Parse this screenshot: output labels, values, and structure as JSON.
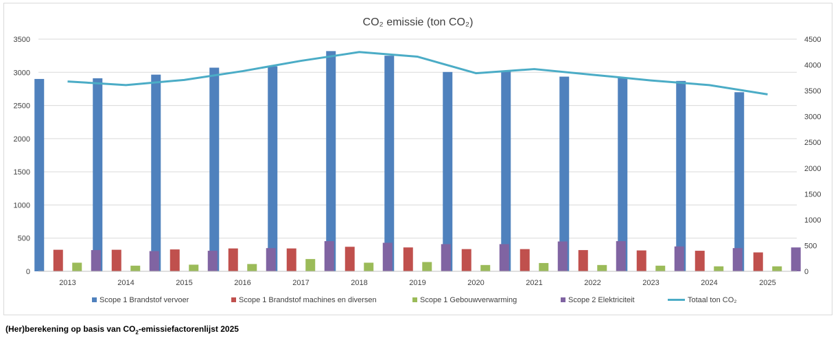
{
  "chart_data": {
    "type": "bar",
    "title": "CO₂ emissie (ton CO₂)",
    "categories": [
      "2013",
      "2014",
      "2015",
      "2016",
      "2017",
      "2018",
      "2019",
      "2020",
      "2021",
      "2022",
      "2023",
      "2024",
      "2025"
    ],
    "ylim_left": [
      0,
      3500
    ],
    "yticks_left": [
      0,
      500,
      1000,
      1500,
      2000,
      2500,
      3000,
      3500
    ],
    "ylim_right": [
      0,
      4500
    ],
    "yticks_right": [
      0,
      500,
      1000,
      1500,
      2000,
      2500,
      3000,
      3500,
      4000,
      4500
    ],
    "grid": "horizontal",
    "legend_position": "bottom",
    "series": [
      {
        "name": "Scope 1 Brandstof vervoer",
        "type": "bar",
        "axis": "left",
        "color": "#4f81bd",
        "values": [
          2900,
          2910,
          2965,
          3070,
          3090,
          3320,
          3250,
          3005,
          3010,
          2935,
          2920,
          2870,
          2700
        ]
      },
      {
        "name": "Scope 1 Brandstof machines en diversen",
        "type": "bar",
        "axis": "left",
        "color": "#c0504d",
        "values": [
          325,
          325,
          330,
          345,
          345,
          370,
          360,
          335,
          335,
          320,
          315,
          310,
          285
        ]
      },
      {
        "name": "Scope 1 Gebouwverwarming",
        "type": "bar",
        "axis": "left",
        "color": "#9bbb59",
        "values": [
          130,
          85,
          100,
          110,
          185,
          130,
          140,
          95,
          125,
          95,
          85,
          75,
          75
        ]
      },
      {
        "name": "Scope 2 Elektriciteit",
        "type": "bar",
        "axis": "left",
        "color": "#8064a2",
        "values": [
          320,
          305,
          310,
          350,
          455,
          430,
          410,
          410,
          450,
          455,
          375,
          350,
          360
        ]
      },
      {
        "name": "Totaal ton CO₂",
        "type": "line",
        "axis": "right",
        "color": "#4bacc6",
        "values": [
          3680,
          3610,
          3710,
          3880,
          4080,
          4250,
          4160,
          3840,
          3920,
          3810,
          3700,
          3610,
          3430
        ]
      }
    ]
  },
  "caption": {
    "pre": "(Her)berekening op basis van CO",
    "sub": "2",
    "post": "-emissiefactorenlijst 2025"
  }
}
